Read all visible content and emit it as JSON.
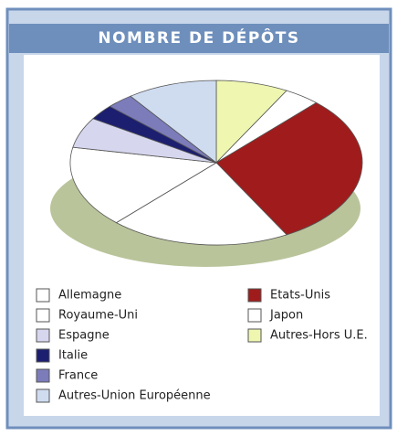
{
  "chart_data": {
    "type": "pie",
    "title": "NOMBRE DE DÉPÔTS",
    "categories": [
      "Allemagne",
      "Royaume-Uni",
      "Espagne",
      "Italie",
      "France",
      "Autres-Union Européenne",
      "Etats-Unis",
      "Japon",
      "Autres-Hors U.E."
    ],
    "values": [
      16,
      20,
      6,
      3,
      3,
      10,
      30,
      4,
      8
    ],
    "colors": [
      "#ffffff",
      "#ffffff",
      "#d6d6ee",
      "#1c1f70",
      "#7c7cba",
      "#cfdcf0",
      "#a01c1c",
      "#ffffff",
      "#eef6b0"
    ]
  }
}
